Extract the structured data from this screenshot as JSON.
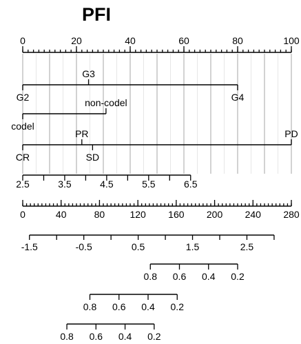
{
  "chart_data": {
    "type": "nomogram",
    "title": "PFI",
    "grid": true,
    "axes": [
      {
        "id": "points",
        "ticks": [
          0,
          20,
          40,
          60,
          80,
          100
        ],
        "tick_labels": [
          "0",
          "20",
          "40",
          "60",
          "80",
          "100"
        ],
        "minor_step": 2,
        "range": [
          0,
          100
        ],
        "labels_above": true
      },
      {
        "id": "grade",
        "levels": [
          {
            "label": "G2",
            "points": 0,
            "side": "below"
          },
          {
            "label": "G3",
            "points": 24.5,
            "side": "above"
          },
          {
            "label": "G4",
            "points": 80,
            "side": "below"
          }
        ]
      },
      {
        "id": "codel",
        "levels": [
          {
            "label": "codel",
            "points": 0,
            "side": "below"
          },
          {
            "label": "non-codel",
            "points": 31,
            "side": "above"
          }
        ]
      },
      {
        "id": "response",
        "levels": [
          {
            "label": "CR",
            "points": 0,
            "side": "below"
          },
          {
            "label": "PR",
            "points": 22,
            "side": "above"
          },
          {
            "label": "SD",
            "points": 26,
            "side": "below"
          },
          {
            "label": "PD",
            "points": 100,
            "side": "above"
          }
        ]
      },
      {
        "id": "continuous",
        "ticks": [
          2.5,
          3,
          3.5,
          4,
          4.5,
          5,
          5.5,
          6,
          6.5
        ],
        "tick_labels": [
          "2.5",
          "",
          "3.5",
          "",
          "4.5",
          "",
          "5.5",
          "",
          "6.5"
        ],
        "range": [
          2.5,
          6.5
        ],
        "points_range": [
          0,
          62.5
        ],
        "labels_above": false
      },
      {
        "id": "total_points",
        "ticks": [
          0,
          40,
          80,
          120,
          160,
          200,
          240,
          280
        ],
        "tick_labels": [
          "0",
          "40",
          "80",
          "120",
          "160",
          "200",
          "240",
          "280"
        ],
        "minor_step": 4,
        "range": [
          0,
          280
        ],
        "labels_above": false
      },
      {
        "id": "linear_predictor",
        "ticks": [
          -1.5,
          -1,
          -0.5,
          0,
          0.5,
          1,
          1.5,
          2,
          2.5,
          3
        ],
        "tick_labels": [
          "-1.5",
          "",
          "-0.5",
          "",
          "0.5",
          "",
          "1.5",
          "",
          "2.5",
          ""
        ],
        "range": [
          -1.5,
          3
        ],
        "total_points_range": [
          7,
          262
        ],
        "labels_above": false
      },
      {
        "id": "prob_1",
        "ticks": [
          0.8,
          0.6,
          0.4,
          0.2
        ],
        "tick_labels": [
          "0.8",
          "0.6",
          "0.4",
          "0.2"
        ],
        "total_points_range": [
          133,
          224
        ]
      },
      {
        "id": "prob_2",
        "ticks": [
          0.8,
          0.6,
          0.4,
          0.2
        ],
        "tick_labels": [
          "0.8",
          "0.6",
          "0.4",
          "0.2"
        ],
        "total_points_range": [
          70,
          161
        ]
      },
      {
        "id": "prob_3",
        "ticks": [
          0.8,
          0.6,
          0.4,
          0.2
        ],
        "tick_labels": [
          "0.8",
          "0.6",
          "0.4",
          "0.2"
        ],
        "total_points_range": [
          46,
          137
        ]
      }
    ]
  }
}
